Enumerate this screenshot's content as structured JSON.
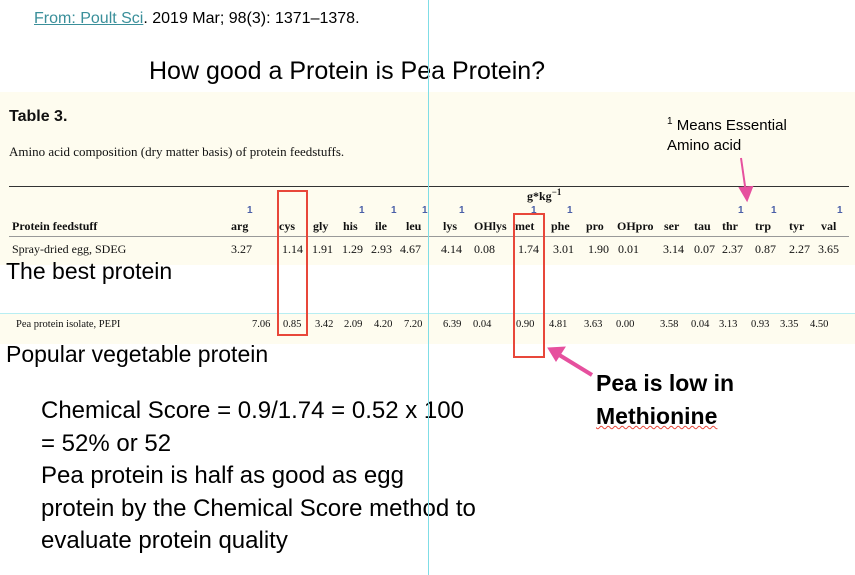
{
  "citation": {
    "source_link": "From: Poult Sci",
    "rest": ". 2019 Mar; 98(3): 1371–1378."
  },
  "slide_title": "How good a Protein is Pea Protein?",
  "table": {
    "title": "Table 3.",
    "caption": "Amino acid composition (dry matter basis) of protein feedstuffs.",
    "unit": "g*kg",
    "unit_exp": "−1",
    "row_header": "Protein feedstuff",
    "essential_marker": "1",
    "columns": [
      {
        "name": "arg",
        "essential": true
      },
      {
        "name": "cys",
        "essential": false
      },
      {
        "name": "gly",
        "essential": false
      },
      {
        "name": "his",
        "essential": true
      },
      {
        "name": "ile",
        "essential": true
      },
      {
        "name": "leu",
        "essential": true
      },
      {
        "name": "lys",
        "essential": true
      },
      {
        "name": "OHlys",
        "essential": false
      },
      {
        "name": "met",
        "essential": true
      },
      {
        "name": "phe",
        "essential": true
      },
      {
        "name": "pro",
        "essential": false
      },
      {
        "name": "OHpro",
        "essential": false
      },
      {
        "name": "ser",
        "essential": false
      },
      {
        "name": "tau",
        "essential": false
      },
      {
        "name": "thr",
        "essential": true
      },
      {
        "name": "trp",
        "essential": true
      },
      {
        "name": "tyr",
        "essential": false
      },
      {
        "name": "val",
        "essential": true
      }
    ],
    "rows": [
      {
        "name": "Spray-dried egg, SDEG",
        "values": [
          "3.27",
          "1.14",
          "1.91",
          "1.29",
          "2.93",
          "4.67",
          "4.14",
          "0.08",
          "1.74",
          "3.01",
          "1.90",
          "0.01",
          "3.14",
          "0.07",
          "2.37",
          "0.87",
          "2.27",
          "3.65"
        ]
      },
      {
        "name": "Pea protein isolate, PEPI",
        "values": [
          "7.06",
          "0.85",
          "3.42",
          "2.09",
          "4.20",
          "7.20",
          "6.39",
          "0.04",
          "0.90",
          "4.81",
          "3.63",
          "0.00",
          "3.58",
          "0.04",
          "3.13",
          "0.93",
          "3.35",
          "4.50"
        ]
      }
    ]
  },
  "annotations": {
    "essential_note_sup": "1",
    "essential_note": "Means Essential",
    "essential_note2": "Amino acid",
    "best_protein": "The best protein",
    "popular_veg": "Popular vegetable protein",
    "pea_low_1": "Pea is low in",
    "pea_low_2": "Methionine",
    "score_lines": [
      "Chemical Score =  0.9/1.74 = 0.52 x 100",
      "= 52% or 52",
      "Pea protein is half as good as egg",
      "protein by the Chemical Score method to",
      "evaluate protein quality"
    ]
  },
  "colors": {
    "accent_red": "#e8473a",
    "pink": "#e6509e",
    "link": "#3a8f9a",
    "cream": "#fefcef"
  }
}
